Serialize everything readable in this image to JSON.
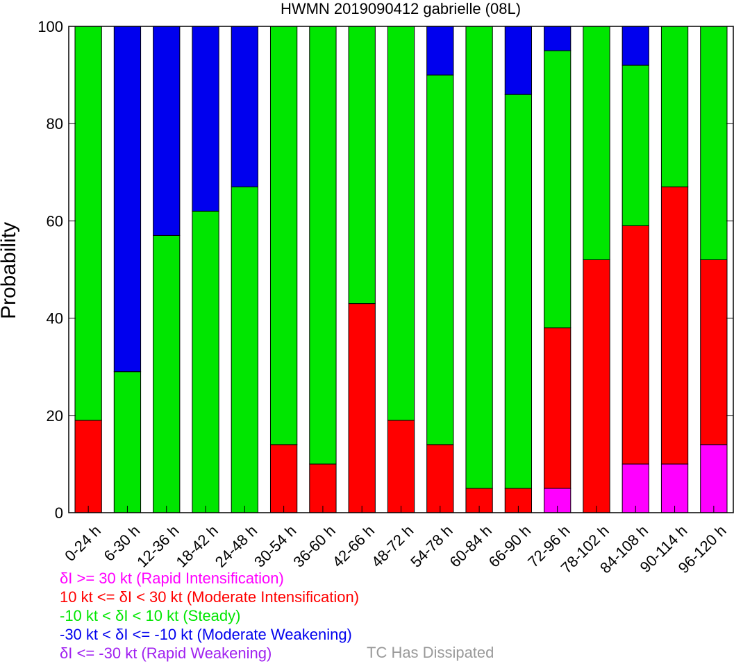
{
  "chart_data": {
    "type": "bar",
    "stacked": true,
    "title": "HWMN 2019090412 gabrielle (08L)",
    "ylabel": "Probability",
    "xlabel": "",
    "ylim": [
      0,
      100
    ],
    "yticks": [
      "0",
      "20",
      "40",
      "60",
      "80",
      "100"
    ],
    "grid": false,
    "categories": [
      "0-24 h",
      "6-30 h",
      "12-36 h",
      "18-42 h",
      "24-48 h",
      "30-54 h",
      "36-60 h",
      "42-66 h",
      "48-72 h",
      "54-78 h",
      "60-84 h",
      "66-90 h",
      "72-96 h",
      "78-102 h",
      "84-108 h",
      "90-114 h",
      "96-120 h"
    ],
    "series": [
      {
        "key": "ri",
        "color": "#ff00ff",
        "values": [
          0,
          0,
          0,
          0,
          0,
          0,
          0,
          0,
          0,
          0,
          0,
          0,
          5,
          0,
          10,
          10,
          14
        ]
      },
      {
        "key": "mi",
        "color": "#ff0000",
        "values": [
          19,
          0,
          0,
          0,
          0,
          14,
          10,
          43,
          19,
          14,
          5,
          5,
          33,
          52,
          49,
          57,
          38
        ]
      },
      {
        "key": "st",
        "color": "#00e600",
        "values": [
          81,
          29,
          57,
          62,
          67,
          86,
          90,
          57,
          81,
          76,
          95,
          81,
          57,
          48,
          33,
          33,
          48
        ]
      },
      {
        "key": "mw",
        "color": "#0000ee",
        "values": [
          0,
          71,
          43,
          38,
          33,
          0,
          0,
          0,
          0,
          10,
          0,
          14,
          5,
          0,
          8,
          0,
          0
        ]
      },
      {
        "key": "rw",
        "color": "#a020f0",
        "values": [
          0,
          0,
          0,
          0,
          0,
          0,
          0,
          0,
          0,
          0,
          0,
          0,
          0,
          0,
          0,
          0,
          0
        ]
      }
    ],
    "legend": {
      "placement": "bottom-left",
      "entries": [
        {
          "text": "δI >= 30 kt (Rapid Intensification)",
          "color": "#ff00ff"
        },
        {
          "text": "10 kt <= δI < 30 kt (Moderate Intensification)",
          "color": "#ff0000"
        },
        {
          "text": "-10 kt < δI < 10 kt (Steady)",
          "color": "#00e600"
        },
        {
          "text": "-30 kt < δI <= -10 kt (Moderate Weakening)",
          "color": "#0000ee"
        },
        {
          "text": "δI <= -30 kt (Rapid Weakening)",
          "color": "#a020f0"
        }
      ],
      "dissipated": {
        "text": "TC Has Dissipated",
        "color": "#999999"
      }
    }
  }
}
